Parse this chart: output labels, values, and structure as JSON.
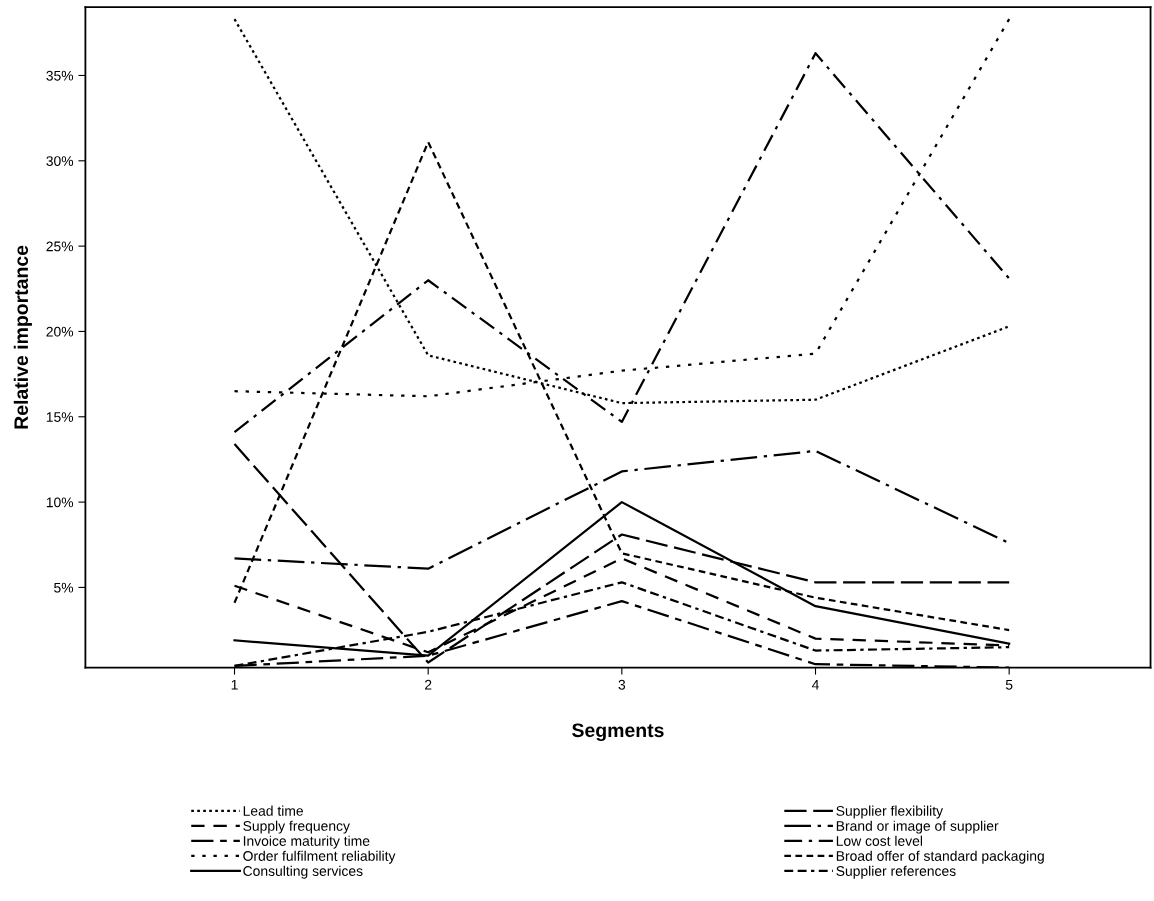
{
  "chart_data": {
    "type": "line",
    "xlabel": "Segments",
    "ylabel": "Relative importance",
    "x": [
      1,
      2,
      3,
      4,
      5
    ],
    "xlim": [
      0.23,
      5.73
    ],
    "xticks": [
      1,
      2,
      3,
      4,
      5
    ],
    "ylim": [
      0.3,
      39
    ],
    "yticks": [
      {
        "value": 5,
        "label": "5%"
      },
      {
        "value": 10,
        "label": "10%"
      },
      {
        "value": 15,
        "label": "15%"
      },
      {
        "value": 20,
        "label": "20%"
      },
      {
        "value": 25,
        "label": "25%"
      },
      {
        "value": 30,
        "label": "30%"
      },
      {
        "value": 35,
        "label": "35%"
      }
    ],
    "grid": false,
    "legend": "bottom",
    "marker": "none",
    "series": [
      {
        "name": "Lead time",
        "color": "#000000",
        "line_style": "dotted",
        "values": [
          38.3,
          18.6,
          15.8,
          16.0,
          20.3
        ]
      },
      {
        "name": "Supply frequency",
        "color": "#000000",
        "line_style": "dashed",
        "values": [
          5.1,
          1.2,
          6.7,
          2.0,
          1.6
        ]
      },
      {
        "name": "Invoice maturity time",
        "color": "#000000",
        "line_style": "long dash short dash",
        "values": [
          0.4,
          1.0,
          4.2,
          0.5,
          0.3
        ]
      },
      {
        "name": "Order fulfilment reliability",
        "color": "#000000",
        "line_style": "loosely dotted",
        "values": [
          16.5,
          16.2,
          17.7,
          18.7,
          38.3
        ]
      },
      {
        "name": "Consulting services",
        "color": "#000000",
        "line_style": "solid",
        "values": [
          1.9,
          1.0,
          10.0,
          3.9,
          1.7
        ]
      },
      {
        "name": "Supplier flexibility",
        "color": "#000000",
        "line_style": "long dashed",
        "values": [
          13.4,
          0.6,
          8.1,
          5.3,
          5.3
        ]
      },
      {
        "name": "Brand or image of supplier",
        "color": "#000000",
        "line_style": "long dash dot",
        "values": [
          6.7,
          6.1,
          11.8,
          13.0,
          7.6
        ]
      },
      {
        "name": "Low cost level",
        "color": "#000000",
        "line_style": "dash dot",
        "values": [
          14.1,
          23.0,
          14.7,
          36.3,
          23.1
        ]
      },
      {
        "name": "Broad offer of standard packaging",
        "color": "#000000",
        "line_style": "short dashed",
        "values": [
          4.1,
          31.1,
          7.0,
          4.4,
          2.5
        ]
      },
      {
        "name": "Supplier references",
        "color": "#000000",
        "line_style": "dash dash dot",
        "values": [
          0.4,
          2.4,
          5.3,
          1.3,
          1.5
        ]
      }
    ]
  }
}
